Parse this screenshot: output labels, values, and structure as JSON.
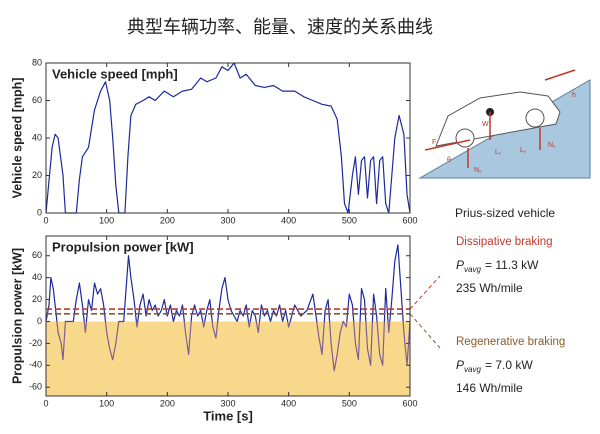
{
  "title": "典型车辆功率、能量、速度的关系曲线",
  "side_note": "Prius-sized vehicle",
  "diagram_labels": [
    "F",
    "W",
    "N₁",
    "N₂",
    "θ",
    "h",
    "L₁",
    "L₂"
  ],
  "chart_data": [
    {
      "type": "line",
      "title": "Vehicle speed [mph]",
      "y_label": "Vehicle speed [mph]",
      "color": "#1c2a9c",
      "xlim": [
        0,
        600
      ],
      "xticks": [
        0,
        100,
        200,
        300,
        400,
        500,
        600
      ],
      "ylim": [
        0,
        80
      ],
      "yticks": [
        0,
        20,
        40,
        60,
        80
      ],
      "x": [
        0,
        10,
        15,
        20,
        28,
        32,
        50,
        55,
        60,
        70,
        80,
        90,
        98,
        105,
        110,
        115,
        120,
        130,
        135,
        140,
        148,
        160,
        170,
        180,
        195,
        210,
        225,
        240,
        255,
        265,
        280,
        290,
        300,
        310,
        320,
        330,
        345,
        360,
        375,
        390,
        410,
        425,
        440,
        455,
        470,
        480,
        487,
        492,
        498,
        505,
        510,
        515,
        520,
        525,
        530,
        535,
        540,
        545,
        550,
        555,
        560,
        565,
        575,
        582,
        590,
        595,
        600
      ],
      "values": [
        0,
        35,
        42,
        40,
        20,
        0,
        0,
        18,
        30,
        35,
        55,
        65,
        70,
        60,
        40,
        15,
        0,
        0,
        30,
        52,
        58,
        60,
        62,
        60,
        65,
        62,
        65,
        66,
        72,
        70,
        72,
        78,
        76,
        80,
        72,
        74,
        68,
        67,
        68,
        65,
        65,
        62,
        60,
        58,
        57,
        50,
        30,
        5,
        0,
        20,
        30,
        10,
        28,
        30,
        8,
        28,
        30,
        5,
        28,
        30,
        5,
        0,
        40,
        52,
        42,
        10,
        0
      ]
    },
    {
      "type": "line",
      "title": "Propulsion power [kW]",
      "y_label": "Propulsion power [kW]",
      "x_label": "Time [s]",
      "color": "#1c2a9c",
      "negative_color": "#7d5f8f",
      "negative_fill": "#f8d98c",
      "xlim": [
        0,
        600
      ],
      "xticks": [
        0,
        100,
        200,
        300,
        400,
        500,
        600
      ],
      "ylim": [
        -68,
        78
      ],
      "yticks": [
        -60,
        -40,
        -20,
        0,
        20,
        40,
        60
      ],
      "x": [
        0,
        5,
        8,
        12,
        16,
        20,
        25,
        28,
        32,
        45,
        50,
        55,
        60,
        65,
        70,
        75,
        80,
        85,
        90,
        95,
        100,
        105,
        110,
        115,
        120,
        128,
        132,
        136,
        140,
        145,
        150,
        155,
        160,
        165,
        170,
        175,
        180,
        185,
        190,
        195,
        200,
        205,
        210,
        215,
        220,
        225,
        230,
        235,
        240,
        245,
        250,
        255,
        260,
        265,
        270,
        275,
        280,
        285,
        290,
        295,
        300,
        305,
        310,
        315,
        320,
        325,
        330,
        335,
        340,
        345,
        350,
        355,
        360,
        365,
        370,
        375,
        380,
        385,
        390,
        395,
        400,
        410,
        420,
        430,
        440,
        445,
        450,
        455,
        460,
        465,
        470,
        475,
        480,
        485,
        490,
        495,
        500,
        505,
        510,
        515,
        520,
        525,
        530,
        535,
        540,
        545,
        550,
        555,
        560,
        565,
        570,
        575,
        580,
        585,
        590,
        595,
        600
      ],
      "values": [
        0,
        15,
        40,
        30,
        10,
        -10,
        -20,
        -35,
        0,
        0,
        20,
        35,
        15,
        -10,
        20,
        10,
        35,
        25,
        30,
        15,
        -10,
        -25,
        -35,
        -20,
        0,
        0,
        30,
        60,
        40,
        20,
        -5,
        15,
        25,
        5,
        20,
        10,
        15,
        5,
        10,
        20,
        5,
        15,
        0,
        10,
        5,
        15,
        -10,
        -30,
        5,
        15,
        5,
        10,
        -5,
        10,
        20,
        -5,
        -15,
        10,
        30,
        40,
        20,
        10,
        5,
        0,
        10,
        5,
        15,
        -5,
        10,
        5,
        -10,
        15,
        5,
        10,
        0,
        10,
        5,
        15,
        0,
        10,
        -5,
        15,
        5,
        10,
        25,
        5,
        -15,
        -30,
        10,
        20,
        -20,
        -45,
        -30,
        -10,
        0,
        -5,
        25,
        15,
        -20,
        -35,
        30,
        20,
        -25,
        -40,
        25,
        5,
        -30,
        -40,
        30,
        -10,
        20,
        55,
        70,
        30,
        -10,
        -40,
        0
      ],
      "reference_lines": [
        {
          "name": "Dissipative braking",
          "value": 11.3,
          "color": "#c0392b",
          "symbol": "P",
          "subscript": "vavg",
          "label": "= 11.3 kW",
          "energy": "235 Wh/mile"
        },
        {
          "name": "Regenerative braking",
          "value": 7.0,
          "color": "#8b5a2b",
          "symbol": "P",
          "subscript": "vavg",
          "label": "= 7.0 kW",
          "energy": "146 Wh/mile"
        }
      ]
    }
  ]
}
